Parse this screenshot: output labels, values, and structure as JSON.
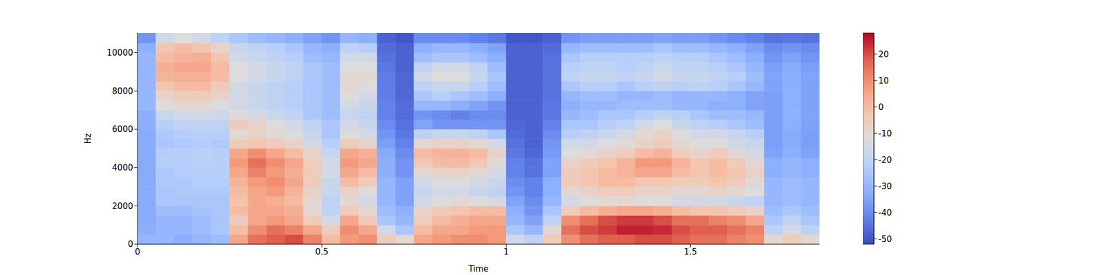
{
  "chart_data": {
    "type": "heatmap",
    "xlabel": "Time",
    "ylabel": "Hz",
    "x_edges": [
      0,
      0.05,
      0.1,
      0.15,
      0.2,
      0.25,
      0.3,
      0.35,
      0.4,
      0.45,
      0.5,
      0.55,
      0.6,
      0.65,
      0.7,
      0.75,
      0.8,
      0.85,
      0.9,
      0.95,
      1,
      1.05,
      1.1,
      1.15,
      1.2,
      1.25,
      1.3,
      1.35,
      1.4,
      1.45,
      1.5,
      1.55,
      1.6,
      1.65,
      1.7,
      1.75,
      1.8,
      1.85
    ],
    "y_edges": [
      0,
      500,
      1000,
      1500,
      2000,
      2500,
      3000,
      3500,
      4000,
      4500,
      5000,
      5500,
      6000,
      6500,
      7000,
      7500,
      8000,
      8500,
      9000,
      9500,
      10000,
      10500,
      11025
    ],
    "xlim": [
      0,
      1.85
    ],
    "ylim": [
      0,
      11025
    ],
    "xticks": [
      0,
      0.5,
      1,
      1.5
    ],
    "yticks": [
      0,
      2000,
      4000,
      6000,
      8000,
      10000
    ],
    "cells": [
      [
        -30,
        -30,
        -32,
        -30,
        -28,
        5,
        15,
        18,
        20,
        12,
        0,
        8,
        10,
        -5,
        -10,
        5,
        8,
        10,
        10,
        8,
        -15,
        -20,
        -5,
        10,
        15,
        18,
        18,
        20,
        20,
        18,
        15,
        15,
        12,
        10,
        -10,
        -5,
        -10
      ],
      [
        -32,
        -30,
        -30,
        -28,
        -25,
        0,
        10,
        15,
        12,
        5,
        -5,
        10,
        5,
        -15,
        -25,
        0,
        5,
        5,
        8,
        8,
        -25,
        -30,
        -10,
        15,
        20,
        22,
        25,
        25,
        24,
        20,
        18,
        18,
        15,
        12,
        -20,
        -15,
        -20
      ],
      [
        -33,
        -30,
        -30,
        -28,
        -25,
        -5,
        5,
        8,
        5,
        -5,
        -15,
        5,
        -5,
        -25,
        -30,
        -5,
        0,
        3,
        5,
        5,
        -30,
        -35,
        -20,
        10,
        15,
        20,
        22,
        22,
        20,
        15,
        15,
        12,
        10,
        5,
        -25,
        -20,
        -25
      ],
      [
        -33,
        -28,
        -28,
        -26,
        -25,
        0,
        5,
        5,
        3,
        -10,
        -20,
        -5,
        -10,
        -28,
        -32,
        -8,
        -5,
        -2,
        0,
        0,
        -32,
        -38,
        -25,
        -5,
        0,
        3,
        5,
        5,
        3,
        0,
        -2,
        -3,
        -5,
        -8,
        -28,
        -25,
        -28
      ],
      [
        -33,
        -25,
        -25,
        -25,
        -25,
        -2,
        5,
        3,
        0,
        -10,
        -20,
        -10,
        -15,
        -30,
        -35,
        -15,
        -12,
        -10,
        -12,
        -15,
        -35,
        -40,
        -30,
        -15,
        -12,
        -10,
        -10,
        -12,
        -12,
        -15,
        -15,
        -15,
        -18,
        -20,
        -30,
        -28,
        -30
      ],
      [
        -33,
        -25,
        -24,
        -24,
        -24,
        0,
        5,
        8,
        2,
        -8,
        -18,
        -8,
        -12,
        -30,
        -35,
        -18,
        -15,
        -15,
        -18,
        -20,
        -38,
        -42,
        -32,
        -10,
        -8,
        -5,
        -5,
        -8,
        -8,
        -10,
        -10,
        -8,
        -10,
        -12,
        -30,
        -28,
        -30
      ],
      [
        -33,
        -24,
        -24,
        -23,
        -23,
        2,
        8,
        10,
        5,
        -5,
        -18,
        0,
        -5,
        -30,
        -35,
        -15,
        -12,
        -12,
        -15,
        -18,
        -40,
        -42,
        -32,
        -5,
        -3,
        0,
        0,
        -3,
        -3,
        -5,
        -5,
        -3,
        -5,
        -10,
        -30,
        -28,
        -30
      ],
      [
        -33,
        -24,
        -23,
        -22,
        -22,
        5,
        12,
        8,
        3,
        -5,
        -15,
        5,
        0,
        -32,
        -38,
        -10,
        -8,
        -8,
        -10,
        -15,
        -42,
        -45,
        -35,
        -5,
        -2,
        0,
        2,
        5,
        5,
        0,
        -3,
        0,
        -2,
        -8,
        -32,
        -30,
        -32
      ],
      [
        -33,
        -22,
        -22,
        -21,
        -22,
        8,
        15,
        10,
        5,
        -5,
        -15,
        8,
        5,
        -32,
        -38,
        -3,
        0,
        0,
        -3,
        -10,
        -42,
        -45,
        -35,
        -8,
        -5,
        -2,
        2,
        8,
        8,
        2,
        -3,
        0,
        -5,
        -10,
        -32,
        -30,
        -32
      ],
      [
        -33,
        -23,
        -22,
        -21,
        -22,
        5,
        10,
        5,
        0,
        -8,
        -18,
        5,
        3,
        -33,
        -40,
        0,
        2,
        2,
        0,
        -8,
        -44,
        -47,
        -37,
        -12,
        -10,
        -8,
        -5,
        0,
        2,
        -5,
        -8,
        -5,
        -10,
        -15,
        -35,
        -32,
        -35
      ],
      [
        -33,
        -25,
        -24,
        -23,
        -24,
        -5,
        -3,
        -5,
        -8,
        -15,
        -22,
        -5,
        -8,
        -36,
        -42,
        -10,
        -8,
        -8,
        -10,
        -15,
        -45,
        -48,
        -38,
        -15,
        -15,
        -12,
        -10,
        -8,
        -5,
        -10,
        -12,
        -12,
        -15,
        -18,
        -36,
        -33,
        -36
      ],
      [
        -33,
        -24,
        -23,
        -22,
        -22,
        -10,
        -8,
        -10,
        -12,
        -18,
        -25,
        -12,
        -15,
        -38,
        -44,
        -20,
        -18,
        -18,
        -20,
        -25,
        -46,
        -48,
        -40,
        -22,
        -20,
        -18,
        -15,
        -10,
        -8,
        -12,
        -15,
        -15,
        -18,
        -22,
        -36,
        -33,
        -36
      ],
      [
        -32,
        -22,
        -20,
        -20,
        -20,
        -5,
        -8,
        -12,
        -15,
        -20,
        -25,
        -15,
        -18,
        -40,
        -45,
        -35,
        -38,
        -38,
        -38,
        -38,
        -47,
        -48,
        -42,
        -25,
        -25,
        -22,
        -20,
        -15,
        -12,
        -18,
        -20,
        -22,
        -25,
        -28,
        -36,
        -32,
        -35
      ],
      [
        -32,
        -18,
        -15,
        -15,
        -16,
        -12,
        -15,
        -18,
        -20,
        -25,
        -28,
        -18,
        -20,
        -42,
        -46,
        -38,
        -40,
        -42,
        -40,
        -40,
        -48,
        -48,
        -44,
        -30,
        -28,
        -25,
        -25,
        -22,
        -20,
        -22,
        -25,
        -28,
        -28,
        -30,
        -36,
        -32,
        -35
      ],
      [
        -30,
        -12,
        -10,
        -10,
        -12,
        -15,
        -18,
        -20,
        -22,
        -25,
        -28,
        -15,
        -18,
        -42,
        -46,
        -30,
        -30,
        -32,
        -35,
        -38,
        -48,
        -48,
        -44,
        -32,
        -30,
        -30,
        -28,
        -28,
        -28,
        -30,
        -30,
        -32,
        -32,
        -35,
        -36,
        -32,
        -35
      ],
      [
        -30,
        -8,
        -5,
        -5,
        -8,
        -15,
        -18,
        -20,
        -22,
        -25,
        -28,
        -12,
        -15,
        -43,
        -47,
        -25,
        -22,
        -25,
        -28,
        -32,
        -48,
        -48,
        -45,
        -30,
        -28,
        -28,
        -30,
        -30,
        -28,
        -30,
        -30,
        -30,
        -32,
        -35,
        -36,
        -32,
        -35
      ],
      [
        -30,
        -3,
        0,
        0,
        -5,
        -15,
        -18,
        -20,
        -22,
        -25,
        -28,
        -10,
        -12,
        -43,
        -47,
        -20,
        -18,
        -18,
        -22,
        -28,
        -48,
        -48,
        -45,
        -25,
        -22,
        -22,
        -25,
        -22,
        -20,
        -22,
        -20,
        -22,
        -25,
        -30,
        -35,
        -32,
        -35
      ],
      [
        -30,
        2,
        3,
        3,
        0,
        -12,
        -15,
        -18,
        -20,
        -25,
        -28,
        -10,
        -10,
        -43,
        -47,
        -15,
        -12,
        -12,
        -18,
        -25,
        -48,
        -48,
        -45,
        -20,
        -18,
        -18,
        -20,
        -18,
        -15,
        -18,
        -18,
        -20,
        -22,
        -28,
        -35,
        -32,
        -35
      ],
      [
        -30,
        3,
        5,
        5,
        0,
        -12,
        -15,
        -18,
        -20,
        -25,
        -28,
        -12,
        -12,
        -44,
        -48,
        -20,
        -15,
        -15,
        -20,
        -28,
        -48,
        -48,
        -45,
        -22,
        -20,
        -20,
        -22,
        -20,
        -18,
        -20,
        -20,
        -22,
        -25,
        -30,
        -36,
        -33,
        -36
      ],
      [
        -30,
        0,
        2,
        3,
        -2,
        -15,
        -18,
        -20,
        -22,
        -28,
        -30,
        -15,
        -15,
        -45,
        -48,
        -28,
        -25,
        -25,
        -28,
        -32,
        -48,
        -48,
        -45,
        -25,
        -22,
        -22,
        -22,
        -22,
        -20,
        -22,
        -22,
        -25,
        -28,
        -32,
        -38,
        -35,
        -38
      ],
      [
        -32,
        -3,
        0,
        -2,
        -8,
        -18,
        -20,
        -22,
        -25,
        -30,
        -32,
        -20,
        -22,
        -46,
        -48,
        -32,
        -30,
        -30,
        -32,
        -35,
        -48,
        -48,
        -46,
        -30,
        -28,
        -28,
        -28,
        -28,
        -25,
        -28,
        -28,
        -30,
        -32,
        -35,
        -40,
        -38,
        -40
      ],
      [
        -38,
        -15,
        -12,
        -15,
        -20,
        -25,
        -28,
        -30,
        -32,
        -35,
        -38,
        -30,
        -32,
        -48,
        -50,
        -40,
        -40,
        -40,
        -42,
        -44,
        -50,
        -50,
        -48,
        -38,
        -36,
        -36,
        -36,
        -36,
        -35,
        -36,
        -36,
        -38,
        -40,
        -42,
        -45,
        -44,
        -45
      ]
    ],
    "colorbar": {
      "lim": [
        -52,
        28
      ],
      "ticks": [
        -50,
        -40,
        -30,
        -20,
        -10,
        0,
        10,
        20
      ]
    }
  }
}
